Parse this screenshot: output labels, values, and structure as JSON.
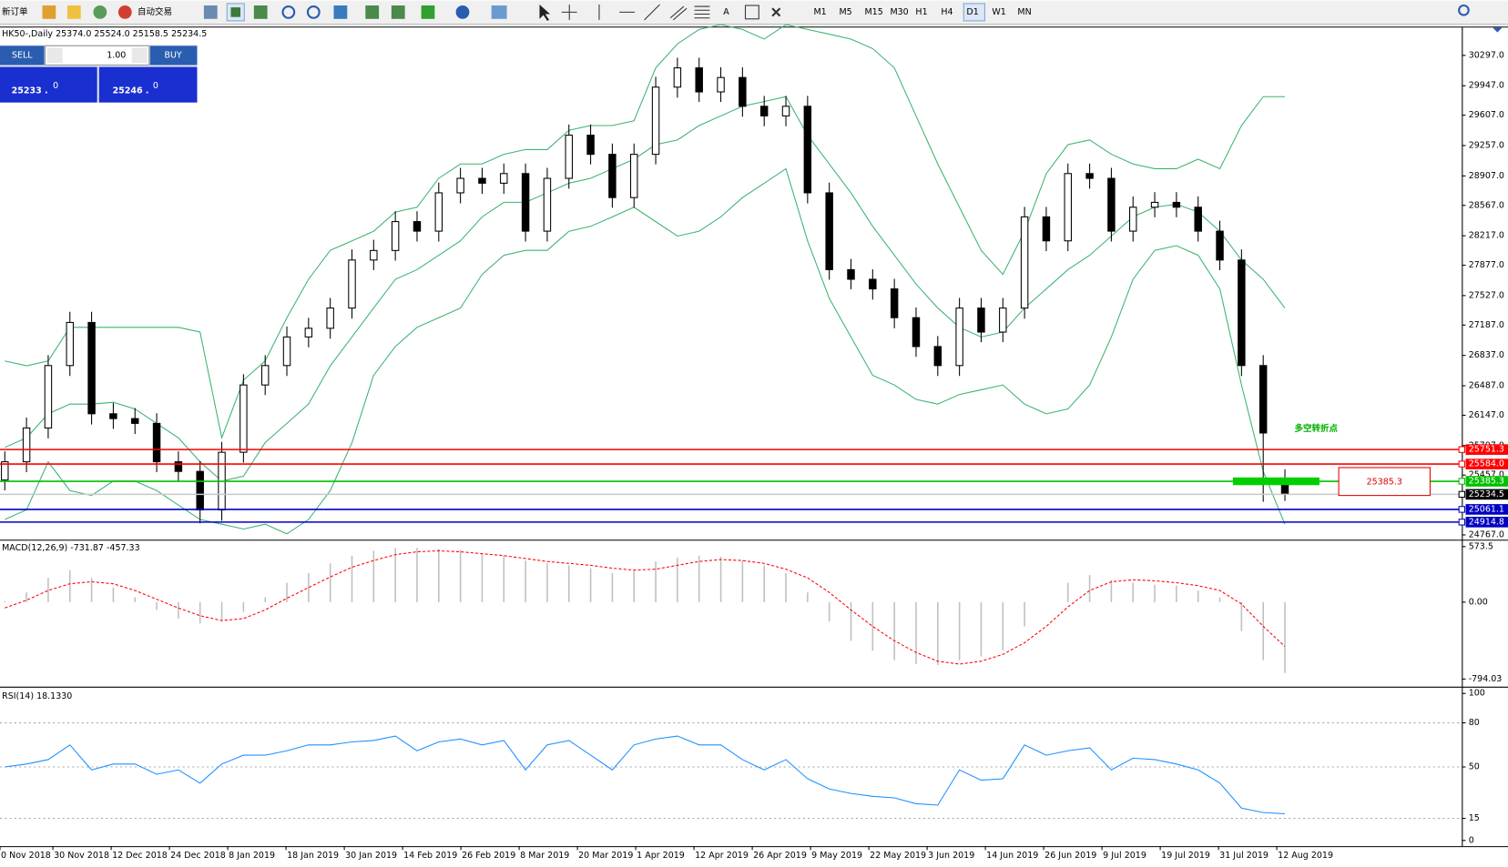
{
  "toolbar": {
    "new_order": "新订单",
    "auto_trading": "自动交易",
    "text_tool": "A",
    "timeframes": [
      "M1",
      "M5",
      "M15",
      "M30",
      "H1",
      "H4",
      "D1",
      "W1",
      "MN"
    ],
    "active_timeframe": "D1"
  },
  "trade_panel": {
    "sell": "SELL",
    "buy": "BUY",
    "lot": "1.00",
    "sell_price": "25233 .",
    "sell_big": "0",
    "buy_price": "25246 .",
    "buy_big": "0"
  },
  "time_axis": {
    "labels": [
      "0 Nov 2018",
      "30 Nov 2018",
      "12 Dec 2018",
      "24 Dec 2018",
      "8 Jan 2019",
      "18 Jan 2019",
      "30 Jan 2019",
      "14 Feb 2019",
      "26 Feb 2019",
      "8 Mar 2019",
      "20 Mar 2019",
      "1 Apr 2019",
      "12 Apr 2019",
      "26 Apr 2019",
      "9 May 2019",
      "22 May 2019",
      "3 Jun 2019",
      "14 Jun 2019",
      "26 Jun 2019",
      "9 Jul 2019",
      "19 Jul 2019",
      "31 Jul 2019",
      "12 Aug 2019"
    ]
  },
  "chart_data": [
    {
      "type": "candlestick",
      "title": "HK50-,Daily 25374.0 25524.0 25158.5 25234.5",
      "open": [
        25400,
        25610,
        26000,
        26720,
        27217,
        26164,
        26108,
        26053,
        25610,
        25499,
        25055,
        25720,
        26496,
        26720,
        27050,
        27150,
        27383,
        27937,
        28047,
        28380,
        28270,
        28712,
        28879,
        28823,
        28934,
        28270,
        28879,
        29377,
        29156,
        28657,
        29156,
        29931,
        30153,
        29876,
        30042,
        29710,
        29599,
        29710,
        28712,
        27826,
        27715,
        27604,
        27272,
        26939,
        26720,
        27383,
        27106,
        27383,
        28435,
        28158,
        28934,
        28879,
        28270,
        28546,
        28602,
        28546,
        28270,
        27937,
        26720,
        25374
      ],
      "high": [
        25730,
        26120,
        26840,
        27340,
        27340,
        26290,
        26230,
        26170,
        25730,
        25620,
        25840,
        26620,
        26840,
        27170,
        27270,
        27500,
        28060,
        28170,
        28500,
        28500,
        28830,
        29000,
        29000,
        29050,
        29050,
        29000,
        29500,
        29500,
        29280,
        29280,
        30050,
        30270,
        30270,
        30160,
        30160,
        29830,
        29830,
        29830,
        28830,
        27950,
        27830,
        27720,
        27390,
        27060,
        27500,
        27500,
        27500,
        28550,
        28550,
        29050,
        29050,
        29000,
        28670,
        28720,
        28720,
        28670,
        28390,
        28060,
        26840,
        25524
      ],
      "low": [
        25280,
        25490,
        25880,
        26600,
        26040,
        25990,
        25930,
        25490,
        25380,
        24900,
        24930,
        25600,
        26380,
        26600,
        26930,
        27030,
        27260,
        27820,
        27930,
        28150,
        28150,
        28590,
        28700,
        28700,
        28150,
        28150,
        28760,
        29040,
        28540,
        28540,
        29040,
        29810,
        29760,
        29760,
        29590,
        29480,
        29480,
        28590,
        27710,
        27600,
        27480,
        27150,
        26820,
        26600,
        26600,
        26990,
        26990,
        27260,
        28040,
        28040,
        28760,
        28150,
        28150,
        28430,
        28430,
        28150,
        27820,
        26600,
        25150,
        25158.5
      ],
      "close": [
        25610,
        26000,
        26720,
        27217,
        26164,
        26108,
        26053,
        25610,
        25499,
        25055,
        25720,
        26496,
        26720,
        27050,
        27150,
        27383,
        27937,
        28047,
        28380,
        28270,
        28712,
        28879,
        28823,
        28934,
        28270,
        28879,
        29377,
        29156,
        28657,
        29156,
        29931,
        30153,
        29876,
        30042,
        29710,
        29599,
        29710,
        28712,
        27826,
        27715,
        27604,
        27272,
        26939,
        26720,
        27383,
        27106,
        27383,
        28435,
        28158,
        28934,
        28879,
        28270,
        28546,
        28602,
        28546,
        28270,
        27937,
        26720,
        25942,
        25234.5
      ],
      "series": [
        {
          "color": "#3cb371",
          "values": [
            26773,
            26718,
            26773,
            27161,
            27161,
            27161,
            27161,
            27161,
            27161,
            27106,
            25887,
            26552,
            26773,
            27272,
            27715,
            28048,
            28158,
            28269,
            28491,
            28546,
            28879,
            29045,
            29045,
            29156,
            29211,
            29211,
            29433,
            29488,
            29488,
            29543,
            30153,
            30430,
            30596,
            30652,
            30596,
            30485,
            30652,
            30596,
            30541,
            30485,
            30375,
            30153,
            29599,
            29045,
            28546,
            28048,
            27771,
            28269,
            28934,
            29267,
            29322,
            29156,
            29045,
            28990,
            28990,
            29100,
            28990,
            29488,
            29821,
            29821
          ]
        },
        {
          "color": "#3cb371",
          "values": [
            25776,
            25887,
            26164,
            26275,
            26275,
            26297,
            26219,
            26053,
            25887,
            25610,
            25388,
            25444,
            25831,
            26053,
            26275,
            26718,
            27050,
            27383,
            27715,
            27826,
            27992,
            28158,
            28435,
            28602,
            28602,
            28712,
            28823,
            28879,
            28990,
            29100,
            29267,
            29322,
            29488,
            29599,
            29710,
            29765,
            29821,
            29377,
            29045,
            28712,
            28325,
            27992,
            27660,
            27383,
            27161,
            27050,
            27106,
            27383,
            27604,
            27826,
            27992,
            28214,
            28435,
            28546,
            28580,
            28491,
            28269,
            27937,
            27715,
            27383
          ]
        },
        {
          "color": "#3cb371",
          "values": [
            24945,
            25056,
            25610,
            25278,
            25222,
            25388,
            25388,
            25278,
            25111,
            24945,
            24890,
            24835,
            24890,
            24779,
            24945,
            25278,
            25831,
            26607,
            26940,
            27161,
            27272,
            27383,
            27771,
            27992,
            28048,
            28048,
            28269,
            28325,
            28435,
            28546,
            28380,
            28214,
            28269,
            28435,
            28657,
            28823,
            28990,
            28158,
            27494,
            27050,
            26607,
            26496,
            26330,
            26275,
            26386,
            26441,
            26496,
            26275,
            26164,
            26219,
            26496,
            27050,
            27715,
            28048,
            28103,
            27992,
            27604,
            26496,
            25499,
            24890
          ]
        }
      ],
      "levels": {
        "values": [
          25751.3,
          25584,
          25385.3,
          25234.5,
          25061.1,
          24914.8
        ],
        "value_labels": [
          "25751.3",
          "25584.0",
          "25385.3",
          "25234.5",
          "25061.1",
          "24914.8"
        ],
        "colors": [
          "#ff0000",
          "#ff0000",
          "#00c000",
          "#c8c8c8",
          "#0000c0",
          "#0000c0"
        ],
        "label_colors": [
          "#ff0000",
          "#ff0000",
          "#00c000",
          "#000000",
          "#0000c0",
          "#0000c0"
        ]
      },
      "annotations": [
        "多空转折点",
        "25385.3"
      ],
      "ylim": [
        24723,
        30618
      ],
      "yticks": [
        {
          "value": 30297,
          "label": "30297.0"
        },
        {
          "value": 29947,
          "label": "29947.0"
        },
        {
          "value": 29607,
          "label": "29607.0"
        },
        {
          "value": 29257,
          "label": "29257.0"
        },
        {
          "value": 28907,
          "label": "28907.0"
        },
        {
          "value": 28567,
          "label": "28567.0"
        },
        {
          "value": 28217,
          "label": "28217.0"
        },
        {
          "value": 27877,
          "label": "27877.0"
        },
        {
          "value": 27527,
          "label": "27527.0"
        },
        {
          "value": 27187,
          "label": "27187.0"
        },
        {
          "value": 26837,
          "label": "26837.0"
        },
        {
          "value": 26487,
          "label": "26487.0"
        },
        {
          "value": 26147,
          "label": "26147.0"
        },
        {
          "value": 25797,
          "label": "25797.0"
        },
        {
          "value": 25457,
          "label": "25457.0"
        },
        {
          "value": 24767,
          "label": "24767.0"
        }
      ]
    },
    {
      "type": "macd",
      "title": "MACD(12,26,9) -731.87 -457.33",
      "histogram": [
        10,
        100,
        250,
        330,
        250,
        150,
        50,
        -80,
        -170,
        -220,
        -200,
        -100,
        50,
        200,
        300,
        400,
        480,
        530,
        560,
        560,
        550,
        540,
        500,
        480,
        430,
        400,
        380,
        350,
        300,
        320,
        420,
        460,
        480,
        470,
        430,
        380,
        300,
        100,
        -200,
        -400,
        -500,
        -600,
        -640,
        -650,
        -600,
        -560,
        -500,
        -250,
        0,
        200,
        280,
        230,
        200,
        180,
        170,
        120,
        50,
        -300,
        -600,
        -731.87
      ],
      "signal": [
        -60,
        20,
        120,
        190,
        210,
        190,
        120,
        30,
        -60,
        -140,
        -190,
        -170,
        -80,
        40,
        150,
        260,
        360,
        430,
        490,
        520,
        530,
        520,
        500,
        480,
        450,
        420,
        400,
        380,
        350,
        330,
        340,
        380,
        420,
        440,
        430,
        400,
        340,
        250,
        100,
        -80,
        -250,
        -400,
        -520,
        -610,
        -640,
        -610,
        -540,
        -420,
        -250,
        -50,
        120,
        210,
        230,
        220,
        200,
        170,
        120,
        -20,
        -250,
        -457.33
      ],
      "histogram_color": "#c0c0c0",
      "signal_color": "#ff0000",
      "ylim": [
        -863,
        635
      ],
      "yticks": [
        573.5,
        {
          "value": 0,
          "label": "0.00"
        },
        -794.03
      ]
    },
    {
      "type": "line",
      "title": "RSI(14) 18.1330",
      "values": [
        50,
        52,
        55,
        65,
        48,
        52,
        52,
        45,
        48,
        39,
        52,
        58,
        58,
        61,
        65,
        65,
        67,
        68,
        71,
        61,
        67,
        69,
        65,
        68,
        48,
        65,
        68,
        58,
        48,
        65,
        69,
        71,
        65,
        65,
        55,
        48,
        55,
        42,
        35,
        32,
        30,
        29,
        25,
        24,
        48,
        41,
        42,
        65,
        58,
        61,
        63,
        48,
        56,
        55,
        52,
        48,
        39,
        22,
        19,
        18.133
      ],
      "color": "#1e90ff",
      "level_lines": [
        15,
        50,
        80
      ],
      "ylim": [
        -3.9,
        103.3
      ],
      "yticks": [
        0,
        15,
        50,
        80,
        100
      ]
    }
  ]
}
